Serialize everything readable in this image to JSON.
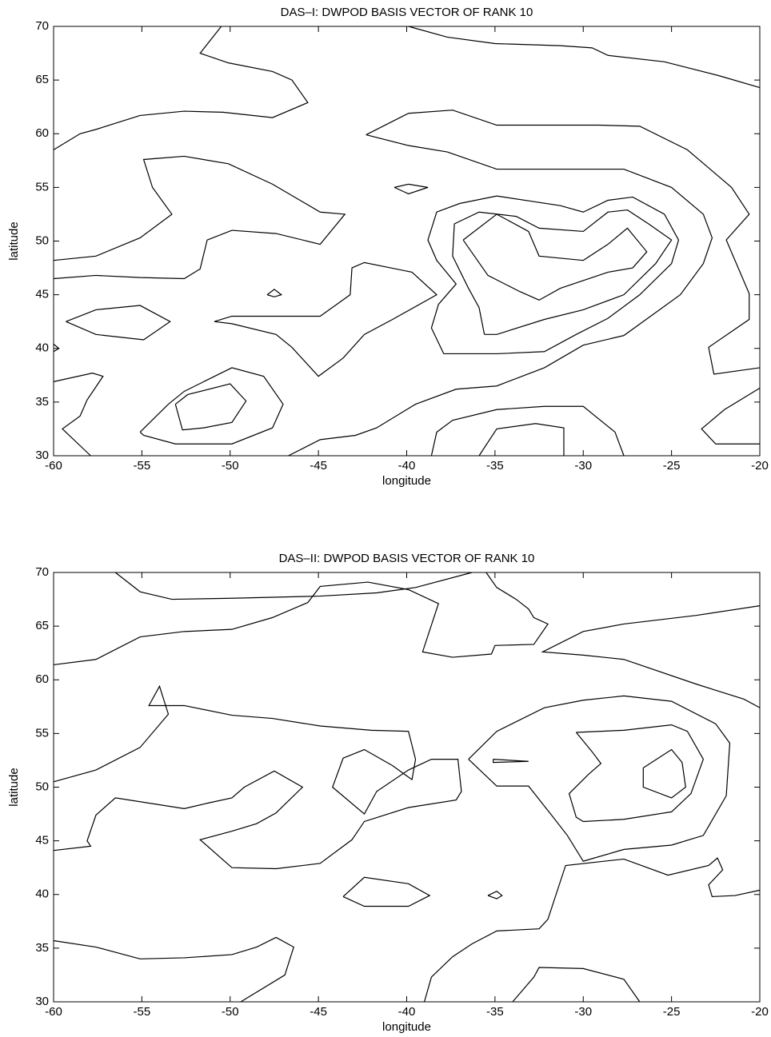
{
  "chart_data": [
    {
      "type": "contour",
      "title": "DAS–I: DWPOD BASIS VECTOR OF RANK 10",
      "xlabel": "longitude",
      "ylabel": "latitude",
      "color": "#000000",
      "xlim": [
        -60,
        -20
      ],
      "ylim": [
        30,
        70
      ],
      "xticks": [
        -60,
        -55,
        -50,
        -45,
        -40,
        -35,
        -30,
        -25,
        -20
      ],
      "yticks": [
        30,
        35,
        40,
        45,
        50,
        55,
        60,
        65,
        70
      ],
      "lines": [
        {
          "x": [
            -60,
            -58.5,
            -57.6,
            -55.1,
            -52.6,
            -50.4,
            -47.6,
            -45.6,
            -46.5,
            -47.6,
            -50.1,
            -51.7,
            -50.5
          ],
          "y": [
            58.5,
            60,
            60.4,
            61.7,
            62.1,
            62,
            61.5,
            62.9,
            65,
            65.8,
            66.6,
            67.5,
            70
          ]
        },
        {
          "x": [
            -39.9,
            -37.7,
            -35,
            -31.3,
            -29.5,
            -28.6,
            -25.4,
            -22.3,
            -20
          ],
          "y": [
            70,
            69,
            68.4,
            68.2,
            68,
            67.3,
            66.7,
            65.4,
            64.3
          ]
        },
        {
          "x": [
            -60,
            -57.6,
            -55.1,
            -53.3,
            -54.4,
            -54.9,
            -52.6,
            -50.1,
            -47.6,
            -44.9,
            -43.5,
            -44.5,
            -44.9,
            -47.4,
            -49.9,
            -51.3,
            -51.7,
            -52.6,
            -55.1,
            -57.6,
            -60
          ],
          "y": [
            48.2,
            48.6,
            50.3,
            52.5,
            55,
            57.6,
            57.9,
            57.2,
            55.3,
            52.7,
            52.5,
            50.5,
            49.7,
            50.7,
            51,
            50.1,
            47.4,
            46.5,
            46.6,
            46.8,
            46.5
          ]
        },
        {
          "x": [
            -59.3,
            -57.6,
            -55.1,
            -53.4,
            -54.9,
            -57.6,
            -59.3
          ],
          "y": [
            42.5,
            43.6,
            44,
            42.5,
            40.8,
            41.3,
            42.5
          ]
        },
        {
          "x": [
            -60,
            -59.7,
            -60
          ],
          "y": [
            40.4,
            40,
            39.7
          ]
        },
        {
          "x": [
            -50.9,
            -49.9,
            -44.9,
            -43.2,
            -43.1,
            -42.4,
            -39.7,
            -38.3,
            -40.8,
            -42.4,
            -43.6,
            -45,
            -46.5,
            -47.4,
            -49.9,
            -50.9
          ],
          "y": [
            42.5,
            43,
            43,
            45,
            47.5,
            48,
            47.1,
            45,
            42.7,
            41.3,
            39.1,
            37.4,
            40.1,
            41.3,
            42.3,
            42.5
          ]
        },
        {
          "x": [
            -47.9,
            -47.5,
            -47.1,
            -47.5,
            -47.9
          ],
          "y": [
            45,
            45.5,
            45,
            44.8,
            45
          ]
        },
        {
          "x": [
            -40.7,
            -39.9,
            -38.8,
            -39.9,
            -40.7
          ],
          "y": [
            55,
            55.3,
            55,
            54.4,
            55
          ]
        },
        {
          "x": [
            -42.3,
            -39.9,
            -37.4,
            -34.9,
            -29.1,
            -26.8,
            -24.1,
            -21.6,
            -20.6,
            -21.9,
            -20.6,
            -20.6,
            -22.9,
            -22.6,
            -20
          ],
          "y": [
            59.9,
            61.9,
            62.2,
            60.8,
            60.8,
            60.7,
            58.5,
            55,
            52.5,
            50.1,
            45.1,
            42.7,
            40.1,
            37.6,
            38.2
          ]
        },
        {
          "x": [
            -46.7,
            -44.9,
            -42.9,
            -41.7,
            -39.5,
            -37.2,
            -34.9,
            -32.2,
            -30,
            -27.7,
            -24.5,
            -23.2,
            -22.7,
            -23.2,
            -25,
            -27.7,
            -34.9,
            -37.7,
            -39.9,
            -42.3
          ],
          "y": [
            30,
            31.5,
            31.9,
            32.6,
            34.8,
            36.2,
            36.5,
            38.2,
            40.3,
            41.2,
            45,
            47.9,
            50.3,
            52.5,
            55,
            56.7,
            56.7,
            58.3,
            58.9,
            59.9
          ]
        },
        {
          "x": [
            -37.9,
            -38.6,
            -38.2,
            -37.2,
            -38.3,
            -38.8,
            -38.3,
            -37,
            -34.9,
            -32.9,
            -31.3,
            -30,
            -28.6,
            -27.2,
            -25.4,
            -24.6,
            -25,
            -26.8,
            -28.6,
            -30.4,
            -32.2,
            -34.9,
            -37.9
          ],
          "y": [
            39.5,
            41.9,
            44.1,
            46,
            48.2,
            50.1,
            52.7,
            53.5,
            54.2,
            53.7,
            53.3,
            52.7,
            53.8,
            54.1,
            52.5,
            50.1,
            47.9,
            45,
            42.8,
            41.3,
            39.7,
            39.5,
            39.5
          ]
        },
        {
          "x": [
            -35.6,
            -35.9,
            -36.5,
            -37.4,
            -37.3,
            -35.9,
            -33.8,
            -32.5,
            -30,
            -28.6,
            -27.5,
            -26.3,
            -25,
            -25.9,
            -27.7,
            -30,
            -32.2,
            -34.9,
            -35.6
          ],
          "y": [
            41.3,
            43.8,
            45.6,
            48.6,
            51.6,
            52.7,
            52.3,
            51.2,
            50.9,
            52.7,
            52.9,
            51.6,
            50.1,
            47.9,
            45,
            43.6,
            42.7,
            41.3,
            41.3
          ]
        },
        {
          "x": [
            -36.8,
            -34.9,
            -33.1,
            -32.5,
            -30,
            -28.6,
            -27.5,
            -26.4,
            -27.2,
            -28.6,
            -31.3,
            -32.5,
            -33.6,
            -35.4,
            -36.8
          ],
          "y": [
            50.1,
            52.5,
            50.9,
            48.6,
            48.2,
            49.7,
            51.2,
            49,
            47.5,
            47.1,
            45.6,
            44.5,
            45.3,
            46.8,
            50.1
          ]
        },
        {
          "x": [
            -55.1,
            -53.5,
            -52.6,
            -49.9,
            -48.1,
            -47,
            -47.6,
            -49.9,
            -53.1,
            -54.9,
            -55.1
          ],
          "y": [
            32.2,
            34.8,
            36,
            38.2,
            37.4,
            34.8,
            32.6,
            31.1,
            31.1,
            31.9,
            32.2
          ]
        },
        {
          "x": [
            -53.1,
            -52.4,
            -50,
            -49.1,
            -49.9,
            -51.5,
            -52.7,
            -53.1
          ],
          "y": [
            34.8,
            35.7,
            36.7,
            35.1,
            33.1,
            32.6,
            32.4,
            34.8
          ]
        },
        {
          "x": [
            -60,
            -57.8,
            -57.2,
            -58.1,
            -58.5,
            -59.5,
            -57.9
          ],
          "y": [
            36.9,
            37.7,
            37.4,
            35.2,
            33.7,
            32.5,
            30
          ]
        },
        {
          "x": [
            -38.6,
            -38.3,
            -37.4,
            -34.9,
            -32.2,
            -30,
            -28.2,
            -27.7
          ],
          "y": [
            30,
            32.2,
            33.3,
            34.3,
            34.6,
            34.6,
            32.2,
            30
          ]
        },
        {
          "x": [
            -35.9,
            -34.9,
            -32.7,
            -31.1,
            -31.1
          ],
          "y": [
            30,
            32.5,
            33,
            32.6,
            30
          ]
        },
        {
          "x": [
            -20,
            -22,
            -23.3,
            -22.5,
            -20
          ],
          "y": [
            36.3,
            34.3,
            32.5,
            31.1,
            31.1
          ]
        }
      ]
    },
    {
      "type": "contour",
      "title": "DAS–II: DWPOD BASIS VECTOR OF RANK 10",
      "xlabel": "longitude",
      "ylabel": "latitude",
      "color": "#000000",
      "xlim": [
        -60,
        -20
      ],
      "ylim": [
        30,
        70
      ],
      "xticks": [
        -60,
        -55,
        -50,
        -45,
        -40,
        -35,
        -30,
        -25,
        -20
      ],
      "yticks": [
        30,
        35,
        40,
        45,
        50,
        55,
        60,
        65,
        70
      ],
      "lines": [
        {
          "x": [
            -56.5,
            -55.1,
            -53.3,
            -49.9,
            -44.9,
            -41.7,
            -39.5,
            -36.3
          ],
          "y": [
            70,
            68.2,
            67.5,
            67.6,
            67.8,
            68.1,
            68.6,
            70
          ]
        },
        {
          "x": [
            -60,
            -57.6,
            -55.1,
            -52.6,
            -49.9,
            -47.6,
            -45.6,
            -44.9,
            -42.2,
            -39.9,
            -38.2,
            -39.1,
            -37.4,
            -35.2,
            -35,
            -32.8,
            -32,
            -32.8,
            -33.1,
            -33.8,
            -34.9,
            -35.5
          ],
          "y": [
            61.4,
            61.9,
            64,
            64.5,
            64.7,
            65.8,
            67.2,
            68.7,
            69.1,
            68.4,
            67.1,
            62.6,
            62.1,
            62.4,
            63.2,
            63.3,
            65.2,
            65.8,
            66.6,
            67.5,
            68.6,
            70
          ]
        },
        {
          "x": [
            -20,
            -23.6,
            -27.7,
            -30,
            -32.3,
            -30,
            -27.7,
            -23.6,
            -20.9,
            -20
          ],
          "y": [
            66.9,
            66,
            65.2,
            64.5,
            62.6,
            62.3,
            61.9,
            59.6,
            58.2,
            57.4
          ]
        },
        {
          "x": [
            -60,
            -57.9,
            -58.1,
            -57.6,
            -56.5,
            -52.6,
            -51.3,
            -49.9,
            -49.2,
            -47.5,
            -45.9,
            -47.4,
            -48.5,
            -49.9,
            -51.7,
            -49.9,
            -47.4,
            -44.9,
            -43.1,
            -42.4,
            -39.9,
            -37.2,
            -36.9,
            -37.1,
            -38.6,
            -39.9,
            -41.7,
            -42.4,
            -44.2,
            -43.6,
            -42.4,
            -40.8,
            -39.7,
            -39.5,
            -39.9,
            -42,
            -44.9,
            -47.6,
            -49.9,
            -52.6,
            -54.6,
            -54,
            -53.5,
            -55.1,
            -57.6,
            -60
          ],
          "y": [
            44.1,
            44.5,
            45,
            47.4,
            49,
            48,
            48.5,
            49,
            50,
            51.5,
            50,
            47.6,
            46.6,
            45.9,
            45.1,
            42.5,
            42.4,
            42.9,
            45.1,
            46.8,
            48.1,
            48.8,
            49.6,
            52.6,
            52.6,
            51.6,
            49.6,
            47.5,
            50,
            52.7,
            53.5,
            52,
            50.7,
            52.6,
            55.2,
            55.3,
            55.7,
            56.4,
            56.7,
            57.6,
            57.6,
            59.4,
            56.8,
            53.7,
            51.6,
            50.5
          ]
        },
        {
          "x": [
            -36.5,
            -34.9,
            -32.2,
            -30,
            -27.7,
            -25,
            -22.5,
            -21.7,
            -21.9,
            -23.2,
            -25,
            -27.7,
            -30,
            -30.9,
            -31.8,
            -33.1,
            -34.9,
            -36.5
          ],
          "y": [
            52.6,
            55.2,
            57.4,
            58.1,
            58.5,
            58,
            55.9,
            54.1,
            49.2,
            45.5,
            44.6,
            44.2,
            43.1,
            45.5,
            47.4,
            50.1,
            50.1,
            52.6
          ]
        },
        {
          "x": [
            -30.4,
            -29.5,
            -29,
            -29.7,
            -30.8,
            -30.4,
            -30,
            -27.7,
            -25,
            -23.9,
            -23.2,
            -24.1,
            -25,
            -27.7,
            -30.4
          ],
          "y": [
            55.1,
            53.3,
            52.2,
            51.2,
            49.4,
            47.2,
            46.8,
            47,
            47.7,
            49.4,
            52.6,
            55.2,
            55.8,
            55.3,
            55.1
          ]
        },
        {
          "x": [
            -26.6,
            -25,
            -24.4,
            -24.2,
            -25,
            -26.6,
            -26.6
          ],
          "y": [
            51.8,
            53.5,
            52.3,
            50,
            49,
            50,
            51.8
          ]
        },
        {
          "x": [
            -35.1,
            -33.1,
            -35.1,
            -35.1
          ],
          "y": [
            52.6,
            52.4,
            52.3,
            52.6
          ]
        },
        {
          "x": [
            -43.6,
            -42.4,
            -39.9,
            -38.7,
            -39.9,
            -42.4,
            -43.6
          ],
          "y": [
            39.8,
            41.6,
            41,
            39.9,
            38.9,
            38.9,
            39.8
          ]
        },
        {
          "x": [
            -35.4,
            -34.9,
            -34.6,
            -34.9,
            -35.4
          ],
          "y": [
            39.9,
            40.3,
            39.9,
            39.6,
            39.9
          ]
        },
        {
          "x": [
            -39,
            -38.6,
            -37.4,
            -36.3,
            -34.9,
            -32.5,
            -32,
            -31,
            -27.7,
            -25.2,
            -22.9,
            -22.4,
            -22.1,
            -22.9,
            -22.7,
            -21.4,
            -20
          ],
          "y": [
            30,
            32.3,
            34.2,
            35.4,
            36.6,
            36.8,
            37.7,
            42.7,
            43.3,
            41.8,
            42.7,
            43.4,
            42.3,
            40.9,
            39.8,
            39.9,
            40.4
          ]
        },
        {
          "x": [
            -60,
            -57.6,
            -55.1,
            -52.6,
            -49.9,
            -48.5,
            -47.4,
            -46.4,
            -46.9,
            -49.4
          ],
          "y": [
            35.7,
            35.1,
            34,
            34.1,
            34.4,
            35.1,
            36,
            35.1,
            32.5,
            30
          ]
        },
        {
          "x": [
            -34,
            -32.8,
            -32.5,
            -30,
            -27.7,
            -26.8
          ],
          "y": [
            30,
            32.3,
            33.2,
            33.1,
            32.1,
            30
          ]
        }
      ]
    }
  ]
}
